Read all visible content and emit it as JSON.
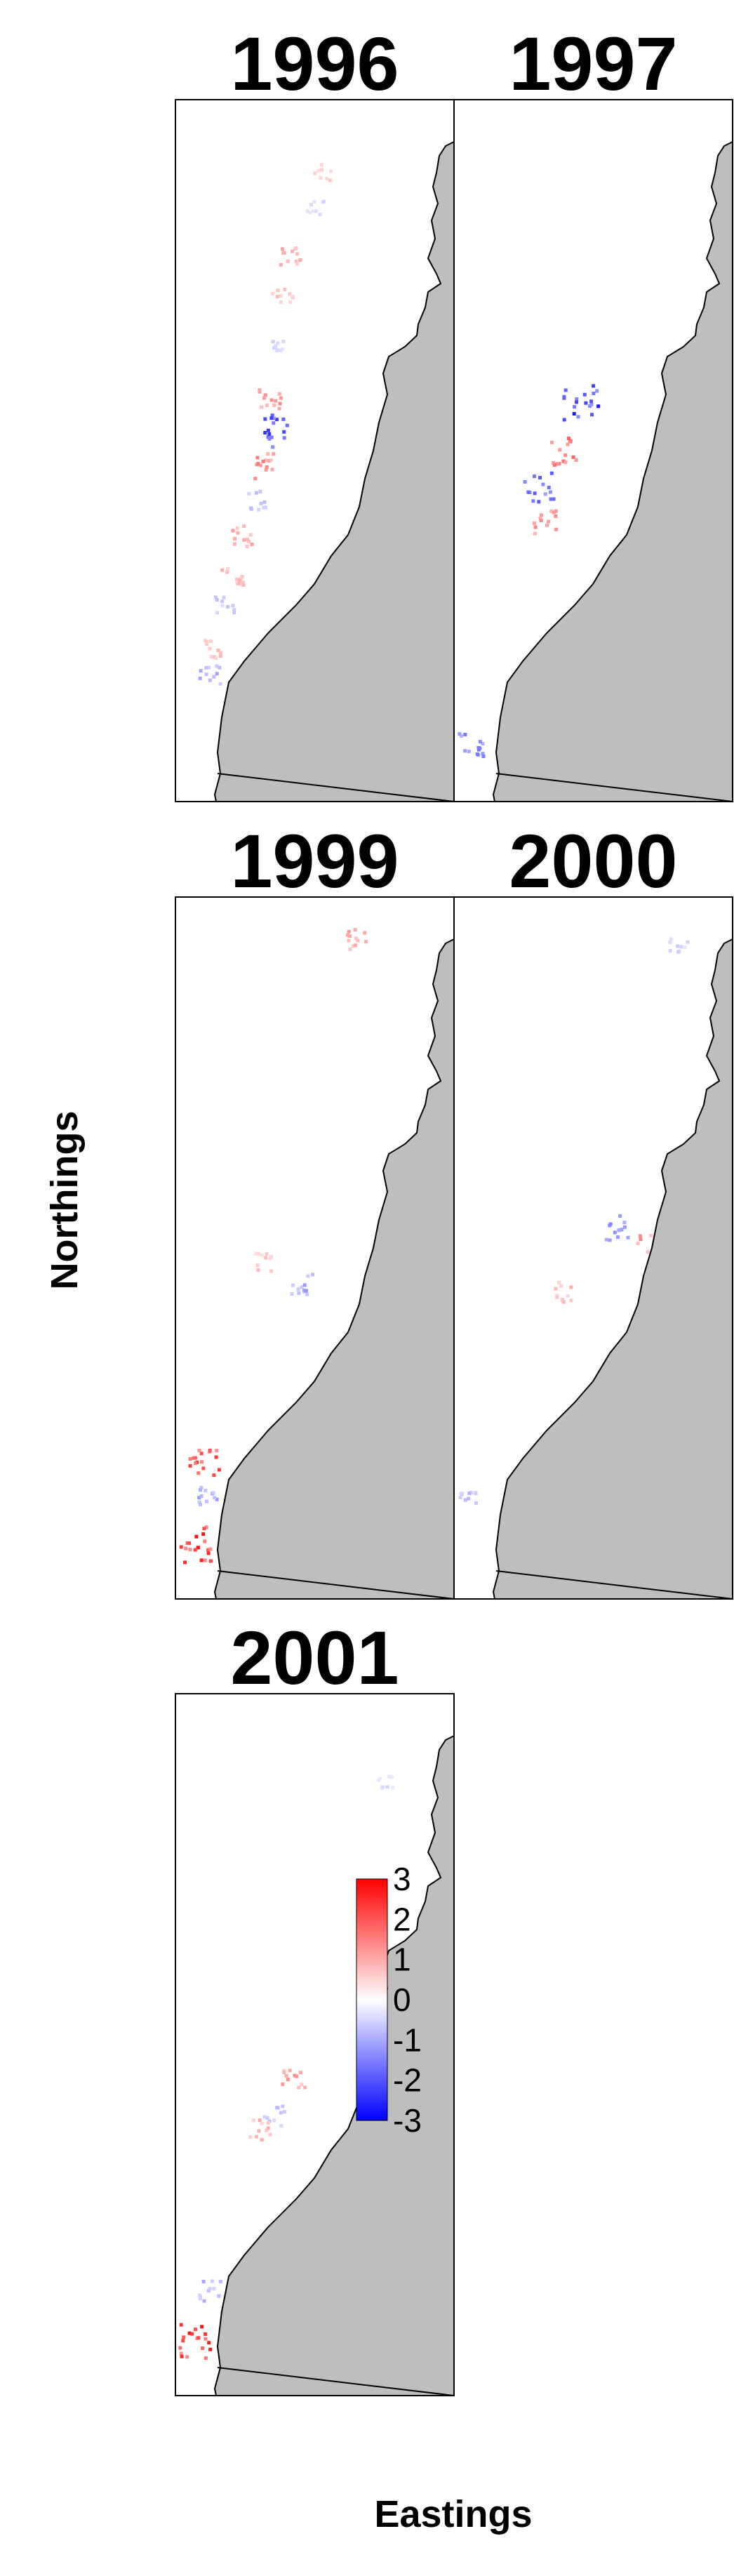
{
  "chart_data": {
    "type": "heatmap",
    "xlabel": "Eastings",
    "ylabel": "Northings",
    "colors": {
      "low": "#0000ff",
      "mid": "#ffffff",
      "high": "#ff0000",
      "land": "#bebebe",
      "coast": "#000000"
    },
    "colorbar": {
      "min": -3,
      "max": 3,
      "ticks": [
        "3",
        "2",
        "1",
        "0",
        "-1",
        "-2",
        "-3"
      ]
    },
    "panels": [
      {
        "title": "1996",
        "clusters": [
          {
            "n": 0.22,
            "e": 0.4,
            "v": 1.1
          },
          {
            "n": 0.28,
            "e": 0.38,
            "v": 0.8
          },
          {
            "n": 0.35,
            "e": 0.35,
            "v": -0.6
          },
          {
            "n": 0.42,
            "e": 0.34,
            "v": 1.3
          },
          {
            "n": 0.47,
            "e": 0.36,
            "v": -2.2
          },
          {
            "n": 0.52,
            "e": 0.3,
            "v": 1.5
          },
          {
            "n": 0.57,
            "e": 0.28,
            "v": -0.8
          },
          {
            "n": 0.62,
            "e": 0.24,
            "v": 1.2
          },
          {
            "n": 0.68,
            "e": 0.2,
            "v": 0.9
          },
          {
            "n": 0.72,
            "e": 0.17,
            "v": -0.7
          },
          {
            "n": 0.78,
            "e": 0.14,
            "v": 1.0
          },
          {
            "n": 0.82,
            "e": 0.12,
            "v": -1.0
          },
          {
            "n": 0.1,
            "e": 0.52,
            "v": 0.6
          },
          {
            "n": 0.15,
            "e": 0.5,
            "v": -0.5
          }
        ]
      },
      {
        "title": "1997",
        "clusters": [
          {
            "n": 0.43,
            "e": 0.45,
            "v": -2.6
          },
          {
            "n": 0.5,
            "e": 0.38,
            "v": 1.8
          },
          {
            "n": 0.55,
            "e": 0.3,
            "v": -1.8
          },
          {
            "n": 0.6,
            "e": 0.32,
            "v": 1.4
          },
          {
            "n": 0.92,
            "e": 0.06,
            "v": -1.5
          }
        ]
      },
      {
        "title": "1999",
        "clusters": [
          {
            "n": 0.06,
            "e": 0.64,
            "v": 1.2
          },
          {
            "n": 0.55,
            "e": 0.45,
            "v": -1.2
          },
          {
            "n": 0.52,
            "e": 0.32,
            "v": 0.8
          },
          {
            "n": 0.8,
            "e": 0.1,
            "v": 2.2
          },
          {
            "n": 0.85,
            "e": 0.12,
            "v": -1.2
          },
          {
            "n": 0.92,
            "e": 0.06,
            "v": 2.6
          }
        ]
      },
      {
        "title": "2000",
        "clusters": [
          {
            "n": 0.07,
            "e": 0.8,
            "v": -0.6
          },
          {
            "n": 0.47,
            "e": 0.58,
            "v": -1.4
          },
          {
            "n": 0.49,
            "e": 0.7,
            "v": 1.4
          },
          {
            "n": 0.56,
            "e": 0.38,
            "v": 0.9
          },
          {
            "n": 0.85,
            "e": 0.05,
            "v": -0.8
          }
        ]
      },
      {
        "title": "2001",
        "clusters": [
          {
            "n": 0.12,
            "e": 0.75,
            "v": -0.5
          },
          {
            "n": 0.55,
            "e": 0.42,
            "v": 1.2
          },
          {
            "n": 0.6,
            "e": 0.35,
            "v": -0.8
          },
          {
            "n": 0.62,
            "e": 0.3,
            "v": 1.0
          },
          {
            "n": 0.85,
            "e": 0.12,
            "v": -1.0
          },
          {
            "n": 0.92,
            "e": 0.06,
            "v": 2.5
          }
        ]
      }
    ]
  }
}
